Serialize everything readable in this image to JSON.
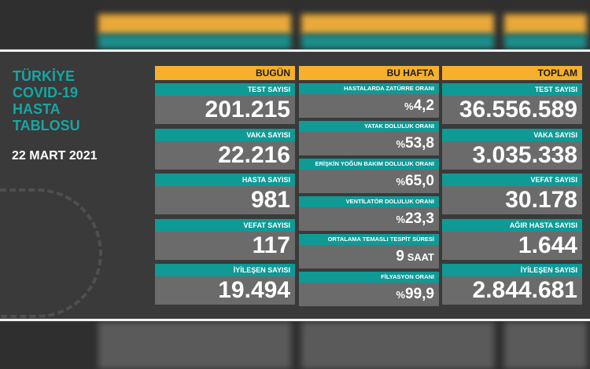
{
  "title": [
    "TÜRKİYE",
    "COVID-19",
    "HASTA",
    "TABLOSU"
  ],
  "date": "22 MART 2021",
  "colors": {
    "teal": "#0f9a96",
    "orange": "#f6b02b",
    "gray": "#6b6b6b",
    "background": "#3a3a3a"
  },
  "bugun": {
    "header": "BUGÜN",
    "items": [
      {
        "label": "TEST SAYISI",
        "value": "201.215"
      },
      {
        "label": "VAKA SAYISI",
        "value": "22.216"
      },
      {
        "label": "HASTA SAYISI",
        "value": "981"
      },
      {
        "label": "VEFAT SAYISI",
        "value": "117"
      },
      {
        "label": "İYİLEŞEN SAYISI",
        "value": "19.494"
      }
    ]
  },
  "bu_hafta": {
    "header": "BU HAFTA",
    "items": [
      {
        "label": "HASTALARDA ZATÜRRE ORANI",
        "prefix": "%",
        "value": "4,2"
      },
      {
        "label": "YATAK DOLULUK ORANI",
        "prefix": "%",
        "value": "53,8"
      },
      {
        "label": "ERİŞKİN YOĞUN BAKIM DOLULUK ORANI",
        "prefix": "%",
        "value": "65,0"
      },
      {
        "label": "VENTİLATÖR DOLULUK ORANI",
        "prefix": "%",
        "value": "23,3"
      },
      {
        "label": "ORTALAMA TEMASLI TESPİT SÜRESİ",
        "value": "9",
        "suffix": " SAAT"
      },
      {
        "label": "FİLYASYON ORANI",
        "prefix": "%",
        "value": "99,9"
      }
    ]
  },
  "toplam": {
    "header": "TOPLAM",
    "items": [
      {
        "label": "TEST SAYISI",
        "value": "36.556.589"
      },
      {
        "label": "VAKA SAYISI",
        "value": "3.035.338"
      },
      {
        "label": "VEFAT SAYISI",
        "value": "30.178"
      },
      {
        "label": "AĞIR HASTA SAYISI",
        "value": "1.644"
      },
      {
        "label": "İYİLEŞEN SAYISI",
        "value": "2.844.681"
      }
    ]
  }
}
